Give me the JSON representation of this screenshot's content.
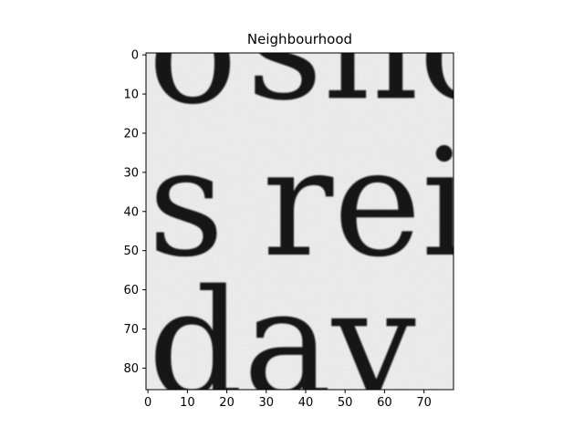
{
  "chart_data": {
    "type": "heatmap",
    "title": "Neighbourhood",
    "xlabel": "",
    "ylabel": "",
    "x_ticks": [
      0,
      10,
      20,
      30,
      40,
      50,
      60,
      70
    ],
    "y_ticks": [
      0,
      10,
      20,
      30,
      40,
      50,
      60,
      70,
      80
    ],
    "xlim": [
      -0.5,
      77.5
    ],
    "ylim": [
      85.5,
      -0.5
    ],
    "y_axis_inverted": true,
    "grid": false,
    "colormap": "gray",
    "image_content": "grayscale crop of a scanned printed page showing partial words",
    "visible_text_fragments": [
      {
        "text": "o",
        "col": 0,
        "row": 12
      },
      {
        "text": "sho",
        "col": 25,
        "row": 11
      },
      {
        "text": "s",
        "col": 0,
        "row": 51
      },
      {
        "text": "rei",
        "col": 29,
        "row": 51
      },
      {
        "text": "day",
        "col": 0,
        "row": 87
      }
    ]
  },
  "colors": {
    "background": "#ffffff",
    "image_paper": "#ececec",
    "ink": "#151515",
    "axis": "#000000"
  }
}
